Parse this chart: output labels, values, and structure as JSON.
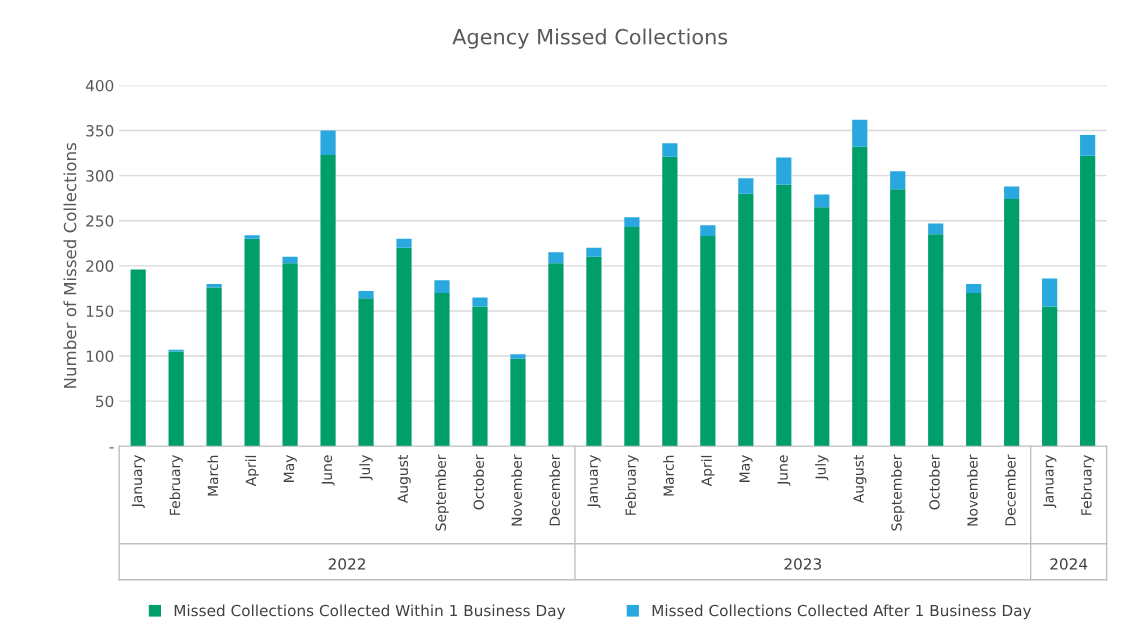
{
  "chart_data": {
    "type": "bar",
    "title": "Agency Missed Collections",
    "ylabel": "Number of Missed Collections",
    "categories": [
      "January",
      "February",
      "March",
      "April",
      "May",
      "June",
      "July",
      "August",
      "September",
      "October",
      "November",
      "December",
      "January",
      "February",
      "March",
      "April",
      "May",
      "June",
      "July",
      "August",
      "September",
      "October",
      "November",
      "December",
      "January",
      "February"
    ],
    "series": [
      {
        "name": "Missed Collections Collected Within 1 Business Day",
        "color": "#009e6a",
        "values": [
          196,
          105,
          176,
          230,
          203,
          323,
          164,
          220,
          170,
          155,
          97,
          203,
          210,
          243,
          321,
          233,
          280,
          290,
          265,
          332,
          285,
          235,
          170,
          274,
          155,
          322
        ]
      },
      {
        "name": "Missed Collections Collected After 1 Business Day",
        "color": "#29a8e0",
        "values": [
          0,
          2,
          4,
          4,
          7,
          27,
          8,
          10,
          14,
          10,
          5,
          12,
          10,
          11,
          15,
          12,
          17,
          30,
          14,
          30,
          20,
          12,
          10,
          14,
          31,
          23
        ]
      }
    ],
    "stacked": true,
    "ylim": [
      0,
      400
    ],
    "yticks": [
      {
        "value": 0,
        "label": "-"
      },
      50,
      100,
      150,
      200,
      250,
      300,
      350,
      400
    ],
    "grid": "y",
    "legend": "bottom",
    "annotations": [
      "2022",
      "2023",
      "2024"
    ]
  }
}
